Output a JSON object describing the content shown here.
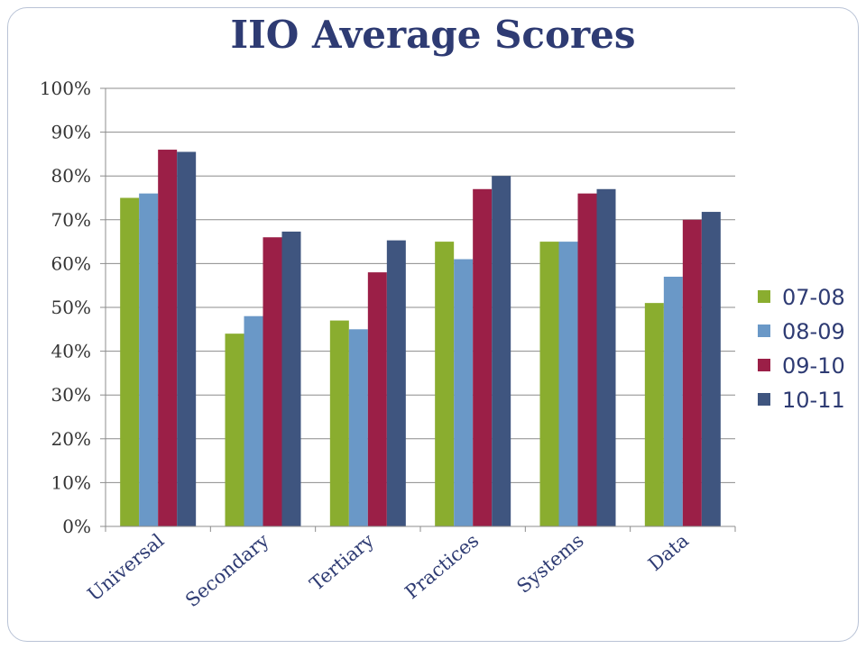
{
  "chart_data": {
    "type": "bar",
    "title": "IIO Average Scores",
    "categories": [
      "Universal",
      "Secondary",
      "Tertiary",
      "Practices",
      "Systems",
      "Data"
    ],
    "series": [
      {
        "name": "07-08",
        "color": "#8aad2f",
        "values": [
          75,
          44,
          47,
          65,
          65,
          51
        ]
      },
      {
        "name": "08-09",
        "color": "#6a98c7",
        "values": [
          76,
          48,
          45,
          61,
          65,
          57
        ]
      },
      {
        "name": "09-10",
        "color": "#9b1f47",
        "values": [
          86,
          66,
          58,
          77,
          76,
          70
        ]
      },
      {
        "name": "10-11",
        "color": "#3f557f",
        "values": [
          85.5,
          67.3,
          65.3,
          80,
          77,
          71.8
        ]
      }
    ],
    "y_ticks": [
      "0%",
      "10%",
      "20%",
      "30%",
      "40%",
      "50%",
      "60%",
      "70%",
      "80%",
      "90%",
      "100%"
    ],
    "ylim": [
      0,
      100
    ],
    "xlabel": "",
    "ylabel": "",
    "grid": true,
    "legend_position": "right"
  }
}
